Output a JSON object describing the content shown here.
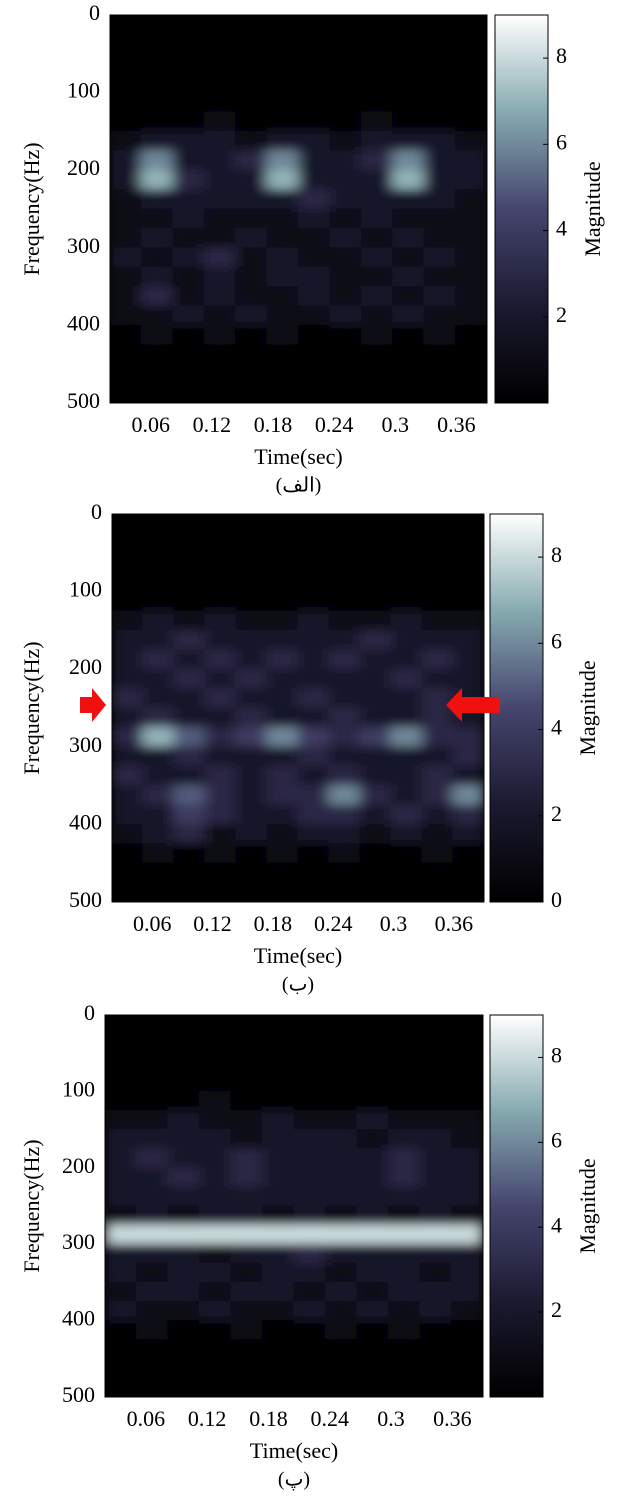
{
  "chart_data": [
    {
      "type": "heatmap",
      "xlabel": "Time(sec)",
      "ylabel": "Frequency(Hz)",
      "caption": "(الف)",
      "xlim": [
        0.02,
        0.39
      ],
      "xticks": [
        0.06,
        0.12,
        0.18,
        0.24,
        0.3,
        0.36
      ],
      "ylim": [
        0,
        500
      ],
      "yticks": [
        0,
        100,
        200,
        300,
        400,
        500
      ],
      "y_inverted": true,
      "colorbar": {
        "label": "Magnitude",
        "lim": [
          0,
          9
        ],
        "ticks": [
          2,
          4,
          6,
          8
        ]
      },
      "colormap": [
        "#000000",
        "#1b1a30",
        "#45456e",
        "#86aab0",
        "#ffffff"
      ],
      "z": [
        [
          0,
          0,
          0,
          0,
          0,
          0,
          0,
          0,
          0,
          0,
          0,
          0
        ],
        [
          0,
          0,
          0,
          0,
          0,
          0,
          0,
          0,
          0,
          0,
          0,
          0
        ],
        [
          0,
          0,
          0,
          0,
          0,
          0,
          0,
          0,
          0,
          0,
          0,
          0
        ],
        [
          0,
          0,
          0,
          0,
          0,
          0,
          0,
          0,
          0,
          0,
          0,
          0
        ],
        [
          0,
          0,
          0,
          0,
          0,
          0,
          0,
          0,
          0,
          0,
          0,
          0
        ],
        [
          0,
          0,
          0,
          1,
          0,
          0,
          0,
          0,
          1,
          0,
          0,
          0
        ],
        [
          1,
          2,
          2,
          2,
          1,
          2,
          2,
          1,
          2,
          2,
          2,
          1
        ],
        [
          2,
          6,
          2,
          2,
          3,
          6,
          2,
          2,
          3,
          6,
          2,
          2
        ],
        [
          2,
          7,
          3,
          2,
          2,
          7,
          2,
          2,
          2,
          7,
          2,
          2
        ],
        [
          1,
          2,
          2,
          2,
          2,
          2,
          3,
          2,
          2,
          2,
          2,
          1
        ],
        [
          1,
          1,
          2,
          1,
          1,
          1,
          2,
          1,
          2,
          1,
          1,
          1
        ],
        [
          1,
          2,
          1,
          1,
          2,
          1,
          1,
          2,
          1,
          2,
          1,
          1
        ],
        [
          2,
          1,
          2,
          3,
          1,
          2,
          1,
          1,
          2,
          1,
          2,
          1
        ],
        [
          1,
          2,
          1,
          2,
          1,
          2,
          2,
          1,
          1,
          2,
          1,
          1
        ],
        [
          1,
          3,
          1,
          2,
          1,
          1,
          2,
          1,
          2,
          1,
          2,
          1
        ],
        [
          1,
          1,
          2,
          1,
          2,
          1,
          1,
          2,
          1,
          2,
          1,
          1
        ],
        [
          0,
          1,
          0,
          1,
          0,
          1,
          0,
          0,
          1,
          0,
          1,
          0
        ],
        [
          0,
          0,
          0,
          0,
          0,
          0,
          0,
          0,
          0,
          0,
          0,
          0
        ],
        [
          0,
          0,
          0,
          0,
          0,
          0,
          0,
          0,
          0,
          0,
          0,
          0
        ],
        [
          0,
          0,
          0,
          0,
          0,
          0,
          0,
          0,
          0,
          0,
          0,
          0
        ]
      ]
    },
    {
      "type": "heatmap",
      "xlabel": "Time(sec)",
      "ylabel": "Frequency(Hz)",
      "caption": "(ب)",
      "xlim": [
        0.02,
        0.39
      ],
      "xticks": [
        0.06,
        0.12,
        0.18,
        0.24,
        0.3,
        0.36
      ],
      "ylim": [
        0,
        500
      ],
      "yticks": [
        0,
        100,
        200,
        300,
        400,
        500
      ],
      "y_inverted": true,
      "colorbar": {
        "label": "Magnitude",
        "lim": [
          0,
          9
        ],
        "ticks": [
          0,
          2,
          4,
          6,
          8
        ]
      },
      "colormap": [
        "#000000",
        "#1b1a30",
        "#45456e",
        "#86aab0",
        "#ffffff"
      ],
      "z": [
        [
          0,
          0,
          0,
          0,
          0,
          0,
          0,
          0,
          0,
          0,
          0,
          0
        ],
        [
          0,
          0,
          0,
          0,
          0,
          0,
          0,
          0,
          0,
          0,
          0,
          0
        ],
        [
          0,
          0,
          0,
          0,
          0,
          0,
          0,
          0,
          0,
          0,
          0,
          0
        ],
        [
          0,
          0,
          0,
          0,
          0,
          0,
          0,
          0,
          0,
          0,
          0,
          0
        ],
        [
          0,
          0,
          0,
          0,
          0,
          0,
          0,
          0,
          0,
          0,
          0,
          0
        ],
        [
          1,
          2,
          1,
          2,
          1,
          1,
          2,
          1,
          1,
          2,
          1,
          1
        ],
        [
          2,
          2,
          3,
          2,
          2,
          2,
          2,
          2,
          3,
          2,
          2,
          2
        ],
        [
          2,
          3,
          2,
          3,
          2,
          3,
          2,
          3,
          2,
          2,
          3,
          2
        ],
        [
          2,
          2,
          3,
          2,
          3,
          2,
          2,
          2,
          2,
          3,
          2,
          2
        ],
        [
          3,
          2,
          2,
          3,
          2,
          2,
          3,
          2,
          2,
          2,
          3,
          2
        ],
        [
          2,
          3,
          2,
          2,
          3,
          2,
          2,
          3,
          2,
          2,
          3,
          2
        ],
        [
          3,
          7,
          5,
          3,
          4,
          6,
          4,
          3,
          4,
          6,
          3,
          3
        ],
        [
          2,
          2,
          3,
          2,
          2,
          2,
          3,
          2,
          2,
          2,
          2,
          3
        ],
        [
          3,
          2,
          2,
          3,
          2,
          3,
          2,
          3,
          2,
          2,
          3,
          2
        ],
        [
          2,
          3,
          5,
          3,
          2,
          3,
          3,
          6,
          3,
          2,
          3,
          6
        ],
        [
          2,
          2,
          4,
          3,
          2,
          2,
          3,
          3,
          2,
          3,
          2,
          3
        ],
        [
          1,
          2,
          3,
          1,
          2,
          1,
          2,
          2,
          1,
          2,
          1,
          2
        ],
        [
          0,
          1,
          0,
          1,
          0,
          1,
          0,
          1,
          0,
          0,
          1,
          0
        ],
        [
          0,
          0,
          0,
          0,
          0,
          0,
          0,
          0,
          0,
          0,
          0,
          0
        ],
        [
          0,
          0,
          0,
          0,
          0,
          0,
          0,
          0,
          0,
          0,
          0,
          0
        ]
      ]
    },
    {
      "type": "heatmap",
      "xlabel": "Time(sec)",
      "ylabel": "Frequency(Hz)",
      "caption": "(پ)",
      "xlim": [
        0.02,
        0.39
      ],
      "xticks": [
        0.06,
        0.12,
        0.18,
        0.24,
        0.3,
        0.36
      ],
      "ylim": [
        0,
        500
      ],
      "yticks": [
        0,
        100,
        200,
        300,
        400,
        500
      ],
      "y_inverted": true,
      "colorbar": {
        "label": "Magnitude",
        "lim": [
          0,
          9
        ],
        "ticks": [
          2,
          4,
          6,
          8
        ]
      },
      "colormap": [
        "#000000",
        "#1b1a30",
        "#45456e",
        "#86aab0",
        "#ffffff"
      ],
      "z": [
        [
          0,
          0,
          0,
          0,
          0,
          0,
          0,
          0,
          0,
          0,
          0,
          0
        ],
        [
          0,
          0,
          0,
          0,
          0,
          0,
          0,
          0,
          0,
          0,
          0,
          0
        ],
        [
          0,
          0,
          0,
          0,
          0,
          0,
          0,
          0,
          0,
          0,
          0,
          0
        ],
        [
          0,
          0,
          0,
          0,
          0,
          0,
          0,
          0,
          0,
          0,
          0,
          0
        ],
        [
          0,
          0,
          0,
          1,
          0,
          0,
          0,
          0,
          0,
          0,
          0,
          0
        ],
        [
          1,
          1,
          2,
          1,
          1,
          2,
          1,
          1,
          2,
          1,
          1,
          1
        ],
        [
          2,
          2,
          2,
          2,
          1,
          2,
          2,
          2,
          1,
          2,
          2,
          1
        ],
        [
          2,
          3,
          2,
          2,
          3,
          2,
          2,
          2,
          2,
          3,
          2,
          2
        ],
        [
          2,
          2,
          3,
          2,
          3,
          2,
          2,
          2,
          2,
          3,
          2,
          2
        ],
        [
          2,
          2,
          2,
          2,
          2,
          2,
          2,
          2,
          2,
          2,
          2,
          2
        ],
        [
          1,
          2,
          1,
          2,
          2,
          1,
          2,
          1,
          2,
          1,
          2,
          1
        ],
        [
          8,
          8,
          8,
          8,
          8,
          8,
          8,
          8,
          8,
          8,
          8,
          8
        ],
        [
          2,
          2,
          2,
          1,
          2,
          2,
          3,
          2,
          2,
          2,
          2,
          2
        ],
        [
          2,
          1,
          2,
          2,
          1,
          2,
          2,
          1,
          2,
          2,
          1,
          2
        ],
        [
          1,
          2,
          2,
          1,
          2,
          2,
          1,
          2,
          1,
          2,
          2,
          2
        ],
        [
          2,
          1,
          1,
          2,
          1,
          1,
          2,
          1,
          2,
          1,
          2,
          1
        ],
        [
          0,
          1,
          0,
          0,
          1,
          0,
          0,
          1,
          0,
          1,
          0,
          0
        ],
        [
          0,
          0,
          0,
          0,
          0,
          0,
          0,
          0,
          0,
          0,
          0,
          0
        ],
        [
          0,
          0,
          0,
          0,
          0,
          0,
          0,
          0,
          0,
          0,
          0,
          0
        ],
        [
          0,
          0,
          0,
          0,
          0,
          0,
          0,
          0,
          0,
          0,
          0,
          0
        ]
      ]
    }
  ]
}
